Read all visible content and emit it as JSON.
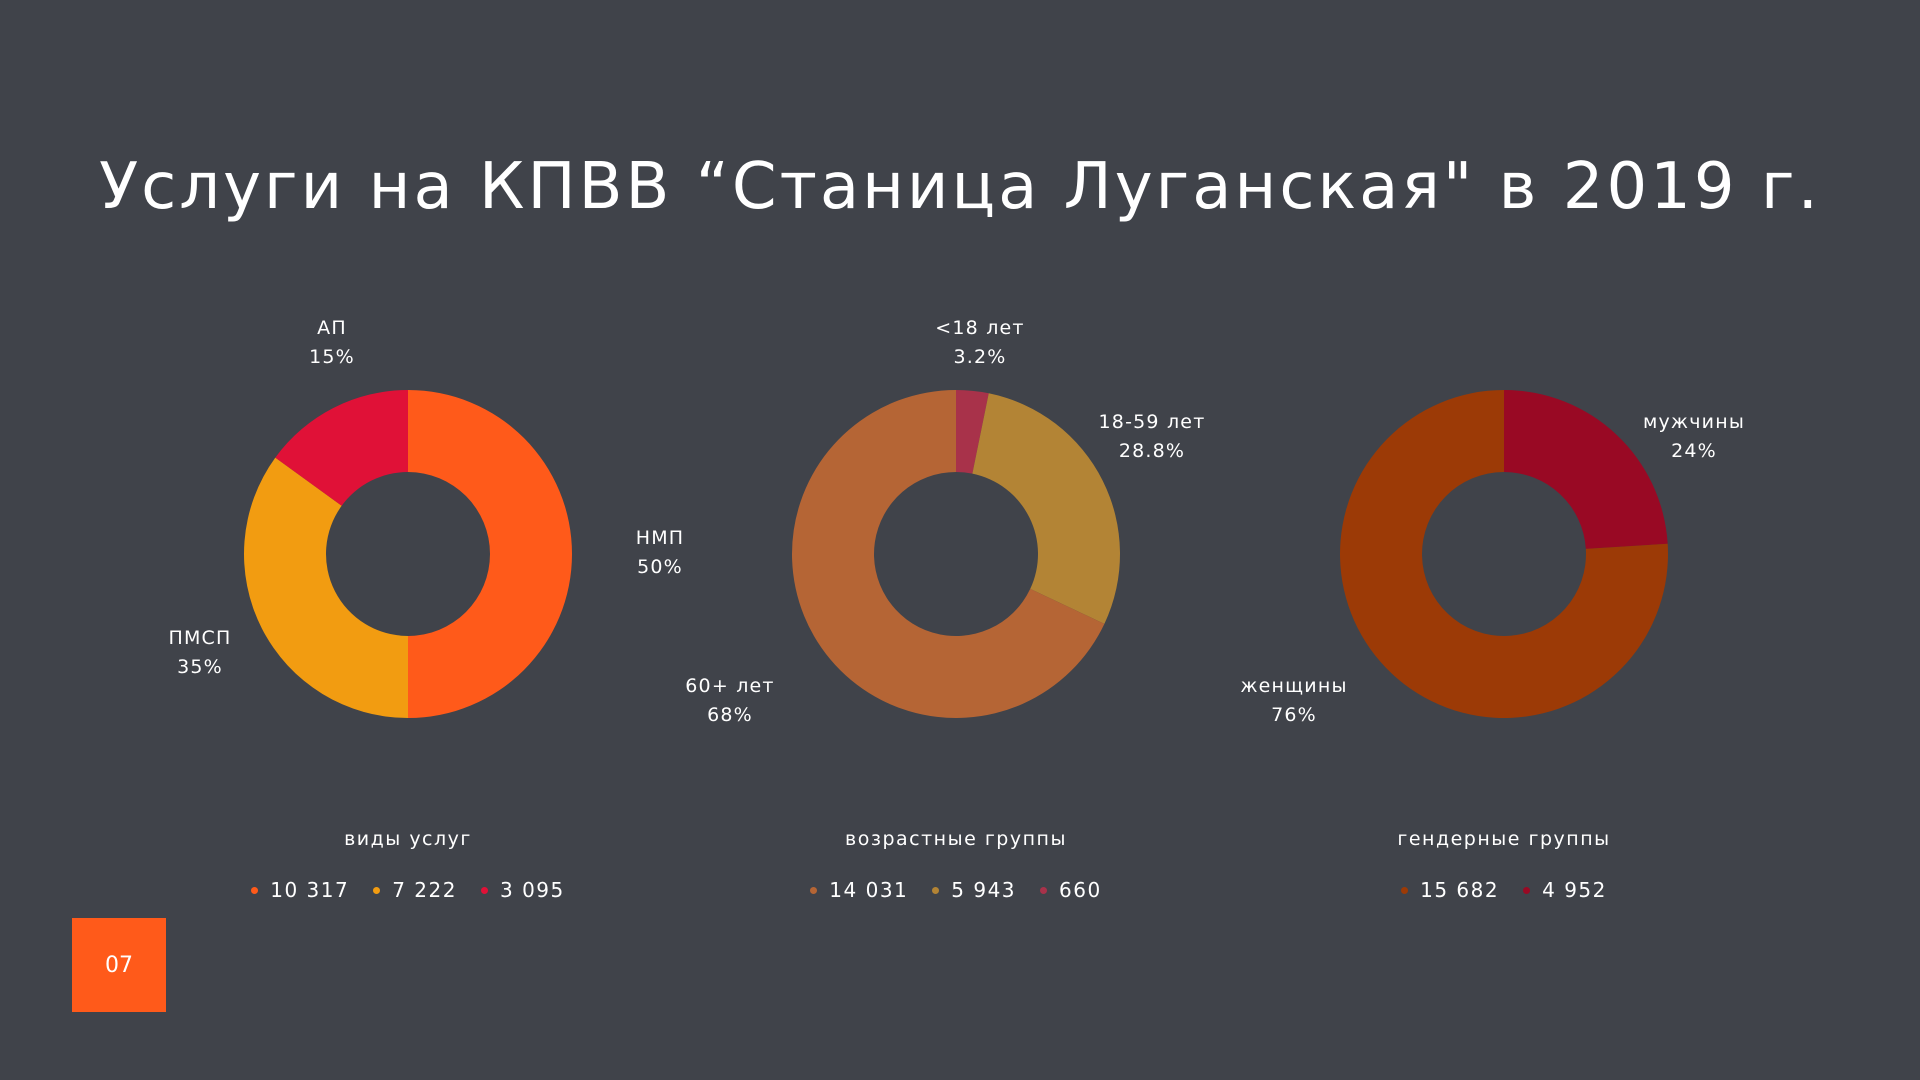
{
  "title": "Услуги на КПВВ “Станица Луганская\" в 2019 г.",
  "page_number": "07",
  "colors": {
    "background": "#40434a",
    "accent": "#ff5a1a"
  },
  "chart_data": [
    {
      "type": "pie",
      "donut": true,
      "title": "виды услуг",
      "slices": [
        {
          "name": "НМП",
          "percent_label": "50%",
          "value": 50,
          "color": "#ff5a1a"
        },
        {
          "name": "ПМСП",
          "percent_label": "35%",
          "value": 35,
          "color": "#f29c11"
        },
        {
          "name": "АП",
          "percent_label": "15%",
          "value": 15,
          "color": "#e01137"
        }
      ],
      "legend": [
        "10 317",
        "7 222",
        "3 095"
      ]
    },
    {
      "type": "pie",
      "donut": true,
      "title": "возрастные группы",
      "slices": [
        {
          "name": "<18 лет",
          "percent_label": "3.2%",
          "value": 3.2,
          "color": "#a8324a"
        },
        {
          "name": "18-59 лет",
          "percent_label": "28.8%",
          "value": 28.8,
          "color": "#b38435"
        },
        {
          "name": "60+ лет",
          "percent_label": "68%",
          "value": 68,
          "color": "#b56535"
        }
      ],
      "legend": [
        {
          "text": "14 031",
          "color": "#b56535"
        },
        {
          "text": "5 943",
          "color": "#b38435"
        },
        {
          "text": "660",
          "color": "#a8324a"
        }
      ]
    },
    {
      "type": "pie",
      "donut": true,
      "title": "гендерные группы",
      "slices": [
        {
          "name": "мужчины",
          "percent_label": "24%",
          "value": 24,
          "color": "#990924"
        },
        {
          "name": "женщины",
          "percent_label": "76%",
          "value": 76,
          "color": "#9c3a06"
        }
      ],
      "legend": [
        {
          "text": "15 682",
          "color": "#9c3a06"
        },
        {
          "text": "4 952",
          "color": "#990924"
        }
      ]
    }
  ]
}
